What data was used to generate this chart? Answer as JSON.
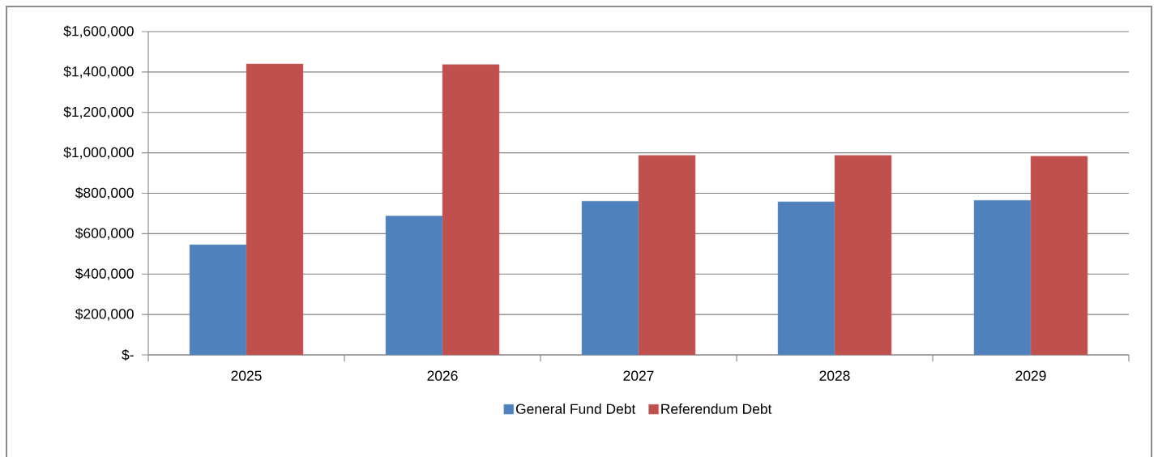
{
  "chart_data": {
    "type": "bar",
    "categories": [
      "2025",
      "2026",
      "2027",
      "2028",
      "2029"
    ],
    "series": [
      {
        "name": "General Fund Debt",
        "color": "#4f81bd",
        "values": [
          545000,
          688000,
          761000,
          758000,
          765000
        ]
      },
      {
        "name": "Referendum Debt",
        "color": "#c0504d",
        "values": [
          1440000,
          1437000,
          987000,
          987000,
          983000
        ]
      }
    ],
    "ylim": [
      0,
      1600000
    ],
    "yticks": [
      {
        "value": 0,
        "label": "$-"
      },
      {
        "value": 200000,
        "label": "$200,000"
      },
      {
        "value": 400000,
        "label": "$400,000"
      },
      {
        "value": 600000,
        "label": "$600,000"
      },
      {
        "value": 800000,
        "label": "$800,000"
      },
      {
        "value": 1000000,
        "label": "$1,000,000"
      },
      {
        "value": 1200000,
        "label": "$1,200,000"
      },
      {
        "value": 1400000,
        "label": "$1,400,000"
      },
      {
        "value": 1600000,
        "label": "$1,600,000"
      }
    ],
    "grid": "y",
    "legend": "bottom"
  }
}
